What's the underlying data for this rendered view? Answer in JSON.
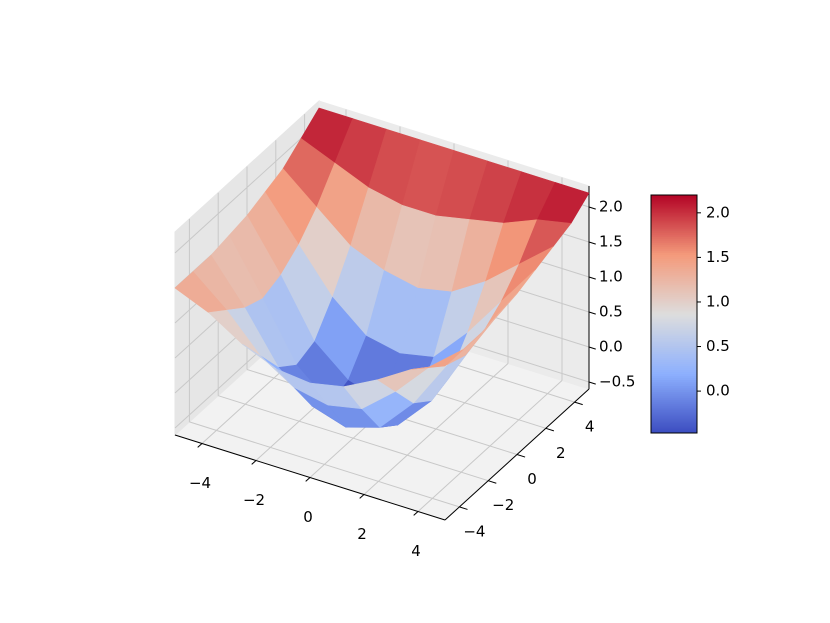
{
  "chart_data": {
    "type": "surface",
    "colormap": "coolwarm",
    "grid": true,
    "x": [
      -5,
      -3.75,
      -2.5,
      -1.25,
      0,
      1.25,
      2.5,
      3.75,
      5
    ],
    "y": [
      -5,
      -3.75,
      -2.5,
      -1.25,
      0,
      1.25,
      2.5,
      3.75,
      5
    ],
    "z": [
      [
        1.5,
        1.3,
        1.0,
        0.8,
        0.75,
        0.85,
        1.1,
        1.4,
        1.6
      ],
      [
        1.5,
        1.1,
        0.6,
        0.3,
        0.2,
        0.3,
        0.7,
        1.2,
        1.6
      ],
      [
        1.5,
        0.9,
        0.2,
        -0.2,
        -0.35,
        -0.2,
        0.3,
        1.0,
        1.6
      ],
      [
        1.55,
        0.8,
        0.0,
        -0.4,
        -0.5,
        -0.4,
        0.1,
        0.9,
        1.65
      ],
      [
        1.6,
        0.9,
        0.1,
        -0.3,
        -0.45,
        -0.3,
        0.2,
        1.0,
        1.7
      ],
      [
        1.7,
        1.1,
        0.5,
        0.1,
        0.0,
        0.1,
        0.6,
        1.2,
        1.8
      ],
      [
        1.8,
        1.4,
        1.0,
        0.8,
        0.7,
        0.8,
        1.1,
        1.5,
        1.9
      ],
      [
        2.0,
        1.8,
        1.6,
        1.5,
        1.5,
        1.6,
        1.7,
        1.9,
        2.0
      ],
      [
        2.2,
        2.2,
        2.2,
        2.2,
        2.2,
        2.2,
        2.2,
        2.2,
        2.2
      ]
    ],
    "xlim": [
      -5,
      5
    ],
    "ylim": [
      -5,
      5
    ],
    "zlim": [
      -0.6,
      2.3
    ],
    "xticks": [
      {
        "value": -4,
        "label": "−4"
      },
      {
        "value": -2,
        "label": "−2"
      },
      0,
      2,
      4
    ],
    "yticks": [
      {
        "value": -4,
        "label": "−4"
      },
      {
        "value": -2,
        "label": "−2"
      },
      0,
      2,
      4
    ],
    "zticks": [
      {
        "value": -0.5,
        "label": "−0.5"
      },
      {
        "value": 0,
        "label": "0.0"
      },
      {
        "value": 0.5,
        "label": "0.5"
      },
      {
        "value": 1,
        "label": "1.0"
      },
      {
        "value": 1.5,
        "label": "1.5"
      },
      {
        "value": 2,
        "label": "2.0"
      }
    ],
    "colorbar": {
      "clim": [
        -0.47,
        2.2
      ],
      "ticks": [
        {
          "value": 0,
          "label": "0.0"
        },
        {
          "value": 0.5,
          "label": "0.5"
        },
        {
          "value": 1,
          "label": "1.0"
        },
        {
          "value": 1.5,
          "label": "1.5"
        },
        {
          "value": 2,
          "label": "2.0"
        }
      ]
    }
  }
}
